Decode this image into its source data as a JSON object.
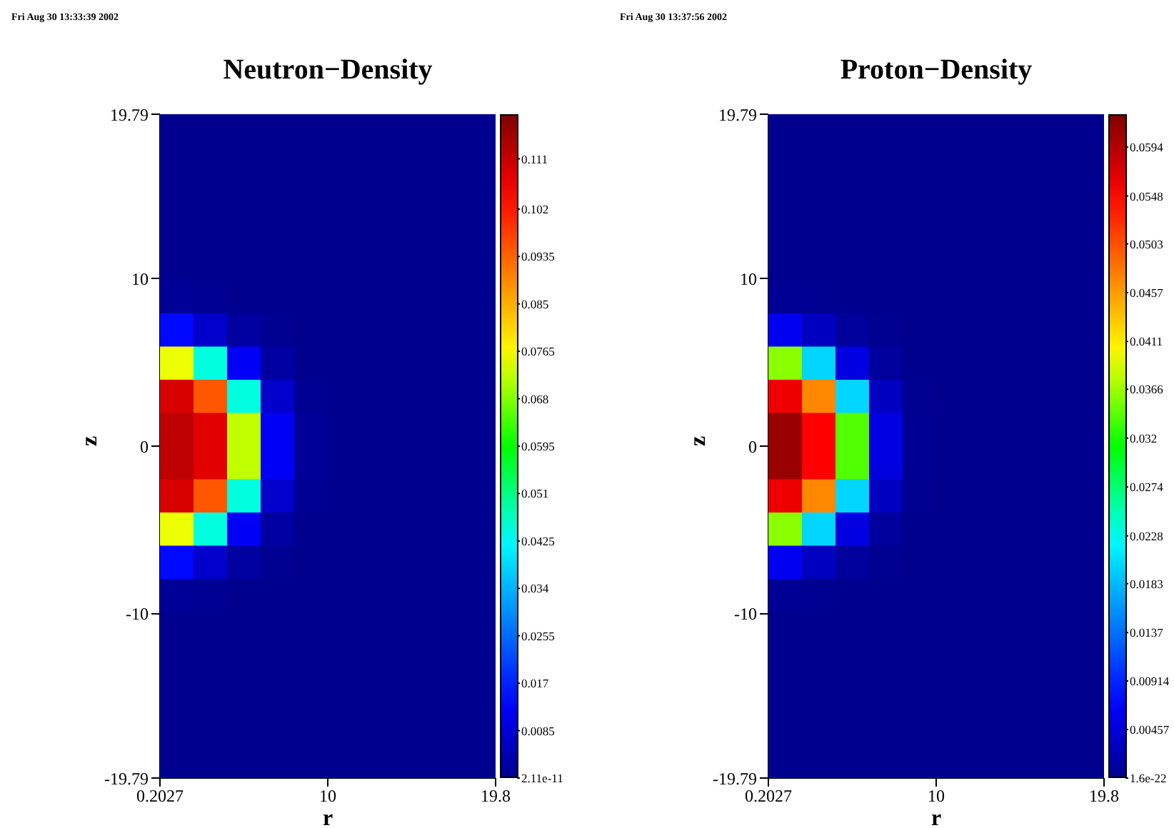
{
  "chart_data": [
    {
      "type": "heatmap",
      "title": "Neutron−Density",
      "xlabel": "r",
      "ylabel": "z",
      "annotations": [
        "Fri Aug 30 13:33:39 2002"
      ],
      "xlim": [
        0.2027,
        19.8
      ],
      "xticks": [
        0.2027,
        10,
        19.8
      ],
      "ylim": [
        -19.79,
        19.79
      ],
      "yticks": [
        -19.79,
        -10,
        0,
        10,
        19.79
      ],
      "clim": [
        0,
        0.119
      ],
      "cticks": [
        2.11e-11,
        0.0085,
        0.017,
        0.0255,
        0.034,
        0.0425,
        0.051,
        0.0595,
        0.068,
        0.0765,
        0.085,
        0.0935,
        0.102,
        0.111
      ],
      "cells": [
        [
          0,
          0,
          0,
          0,
          0,
          0,
          0,
          0,
          0,
          0
        ],
        [
          0,
          0,
          0,
          0,
          0,
          0,
          0,
          0,
          0,
          0
        ],
        [
          0,
          0,
          0,
          0,
          0,
          0,
          0,
          0,
          0,
          0
        ],
        [
          0,
          0,
          0,
          0,
          0,
          0,
          0,
          0,
          0,
          0
        ],
        [
          0,
          0,
          0,
          0,
          0,
          0,
          0,
          0,
          0,
          0
        ],
        [
          0.001,
          0.0005,
          0,
          0,
          0,
          0,
          0,
          0,
          0,
          0
        ],
        [
          0.014,
          0.007,
          0.002,
          0.0002,
          0,
          0,
          0,
          0,
          0,
          0
        ],
        [
          0.075,
          0.045,
          0.012,
          0.002,
          0,
          0,
          0,
          0,
          0,
          0
        ],
        [
          0.109,
          0.095,
          0.045,
          0.007,
          0.0005,
          0,
          0,
          0,
          0,
          0
        ],
        [
          0.112,
          0.108,
          0.072,
          0.012,
          0.001,
          0,
          0,
          0,
          0,
          0
        ],
        [
          0.112,
          0.108,
          0.072,
          0.012,
          0.001,
          0,
          0,
          0,
          0,
          0
        ],
        [
          0.109,
          0.095,
          0.045,
          0.007,
          0.0005,
          0,
          0,
          0,
          0,
          0
        ],
        [
          0.075,
          0.045,
          0.012,
          0.002,
          0,
          0,
          0,
          0,
          0,
          0
        ],
        [
          0.014,
          0.007,
          0.002,
          0.0002,
          0,
          0,
          0,
          0,
          0,
          0
        ],
        [
          0.001,
          0.0005,
          0,
          0,
          0,
          0,
          0,
          0,
          0,
          0
        ],
        [
          0,
          0,
          0,
          0,
          0,
          0,
          0,
          0,
          0,
          0
        ],
        [
          0,
          0,
          0,
          0,
          0,
          0,
          0,
          0,
          0,
          0
        ],
        [
          0,
          0,
          0,
          0,
          0,
          0,
          0,
          0,
          0,
          0
        ],
        [
          0,
          0,
          0,
          0,
          0,
          0,
          0,
          0,
          0,
          0
        ],
        [
          0,
          0,
          0,
          0,
          0,
          0,
          0,
          0,
          0,
          0
        ]
      ]
    },
    {
      "type": "heatmap",
      "title": "Proton−Density",
      "xlabel": "r",
      "ylabel": "z",
      "annotations": [
        "Fri Aug 30 13:37:56 2002"
      ],
      "xlim": [
        0.2027,
        19.8
      ],
      "xticks": [
        0.2027,
        10,
        19.8
      ],
      "ylim": [
        -19.79,
        19.79
      ],
      "yticks": [
        -19.79,
        -10,
        0,
        10,
        19.79
      ],
      "clim": [
        0,
        0.0625
      ],
      "cticks": [
        1.6e-22,
        0.00457,
        0.00914,
        0.0137,
        0.0183,
        0.0228,
        0.0274,
        0.032,
        0.0366,
        0.0411,
        0.0457,
        0.0503,
        0.0548,
        0.0594
      ],
      "cells": [
        [
          0,
          0,
          0,
          0,
          0,
          0,
          0,
          0,
          0,
          0
        ],
        [
          0,
          0,
          0,
          0,
          0,
          0,
          0,
          0,
          0,
          0
        ],
        [
          0,
          0,
          0,
          0,
          0,
          0,
          0,
          0,
          0,
          0
        ],
        [
          0,
          0,
          0,
          0,
          0,
          0,
          0,
          0,
          0,
          0
        ],
        [
          0,
          0,
          0,
          0,
          0,
          0,
          0,
          0,
          0,
          0
        ],
        [
          0.0003,
          0.0001,
          0,
          0,
          0,
          0,
          0,
          0,
          0,
          0
        ],
        [
          0.006,
          0.003,
          0.0008,
          0.0001,
          0,
          0,
          0,
          0,
          0,
          0
        ],
        [
          0.036,
          0.02,
          0.005,
          0.0008,
          0,
          0,
          0,
          0,
          0,
          0
        ],
        [
          0.056,
          0.047,
          0.02,
          0.003,
          0.0001,
          0,
          0,
          0,
          0,
          0
        ],
        [
          0.061,
          0.055,
          0.034,
          0.005,
          0.0003,
          0,
          0,
          0,
          0,
          0
        ],
        [
          0.061,
          0.055,
          0.034,
          0.005,
          0.0003,
          0,
          0,
          0,
          0,
          0
        ],
        [
          0.056,
          0.047,
          0.02,
          0.003,
          0.0001,
          0,
          0,
          0,
          0,
          0
        ],
        [
          0.036,
          0.02,
          0.005,
          0.0008,
          0,
          0,
          0,
          0,
          0,
          0
        ],
        [
          0.006,
          0.003,
          0.0008,
          0.0001,
          0,
          0,
          0,
          0,
          0,
          0
        ],
        [
          0.0003,
          0.0001,
          0,
          0,
          0,
          0,
          0,
          0,
          0,
          0
        ],
        [
          0,
          0,
          0,
          0,
          0,
          0,
          0,
          0,
          0,
          0
        ],
        [
          0,
          0,
          0,
          0,
          0,
          0,
          0,
          0,
          0,
          0
        ],
        [
          0,
          0,
          0,
          0,
          0,
          0,
          0,
          0,
          0,
          0
        ],
        [
          0,
          0,
          0,
          0,
          0,
          0,
          0,
          0,
          0,
          0
        ],
        [
          0,
          0,
          0,
          0,
          0,
          0,
          0,
          0,
          0,
          0
        ]
      ]
    }
  ]
}
